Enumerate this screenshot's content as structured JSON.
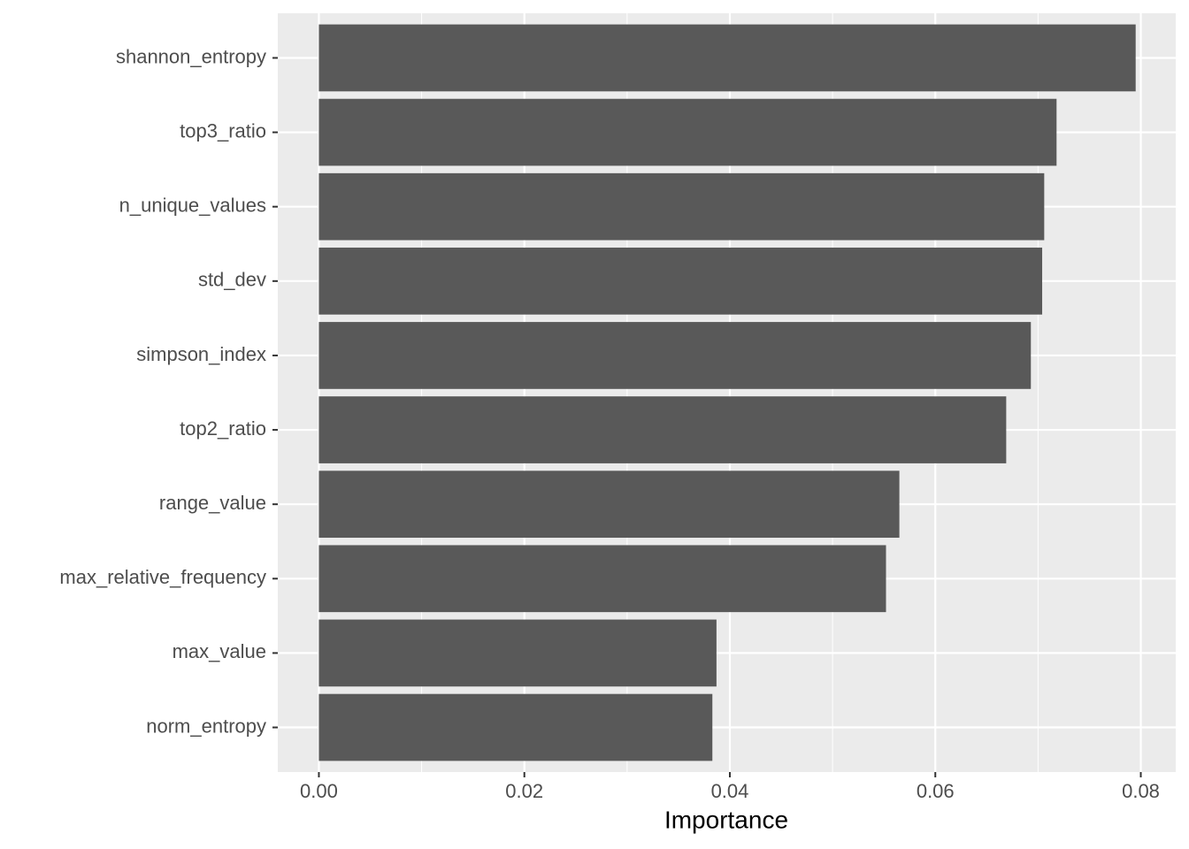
{
  "chart_data": {
    "type": "barh",
    "x_label": "Importance",
    "categories": [
      "shannon_entropy",
      "top3_ratio",
      "n_unique_values",
      "std_dev",
      "simpson_index",
      "top2_ratio",
      "range_value",
      "max_relative_frequency",
      "max_value",
      "norm_entropy"
    ],
    "values": [
      0.0795,
      0.0718,
      0.0706,
      0.0704,
      0.0693,
      0.0669,
      0.0565,
      0.0552,
      0.0387,
      0.0383
    ],
    "color": "#595959",
    "xlim": [
      -0.004,
      0.0834
    ],
    "xticks": [
      {
        "value": 0,
        "label": "0.00"
      },
      {
        "value": 0.02,
        "label": "0.02"
      },
      {
        "value": 0.04,
        "label": "0.04"
      },
      {
        "value": 0.06,
        "label": "0.06"
      },
      {
        "value": 0.08,
        "label": "0.08"
      }
    ],
    "grid": true
  }
}
